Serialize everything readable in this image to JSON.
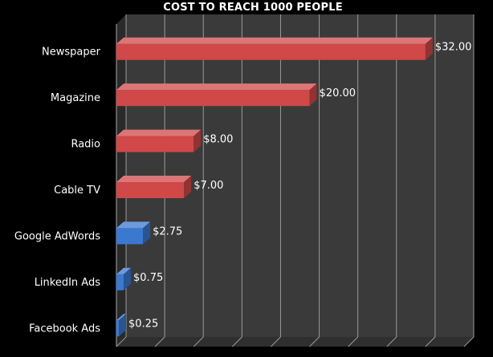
{
  "chart_data": {
    "type": "bar",
    "orientation": "horizontal",
    "title": "COST TO REACH 1000 PEOPLE",
    "xlabel": "",
    "ylabel": "",
    "xlim": [
      0,
      36
    ],
    "grid": true,
    "categories": [
      "Newspaper",
      "Magazine",
      "Radio",
      "Cable TV",
      "Google AdWords",
      "LinkedIn Ads",
      "Facebook Ads"
    ],
    "values": [
      32.0,
      20.0,
      8.0,
      7.0,
      2.75,
      0.75,
      0.25
    ],
    "data_labels": [
      "$32.00",
      "$20.00",
      "$8.00",
      "$7.00",
      "$2.75",
      "$0.75",
      "$0.25"
    ],
    "bar_colors": [
      "#d04848",
      "#d04848",
      "#d04848",
      "#d04848",
      "#3b78d0",
      "#3b78d0",
      "#3b78d0"
    ],
    "background_color": "#000000",
    "plot_background_color": "#3a3a3a",
    "gridline_color": "#9a9a9a",
    "text_color": "#ffffff"
  }
}
